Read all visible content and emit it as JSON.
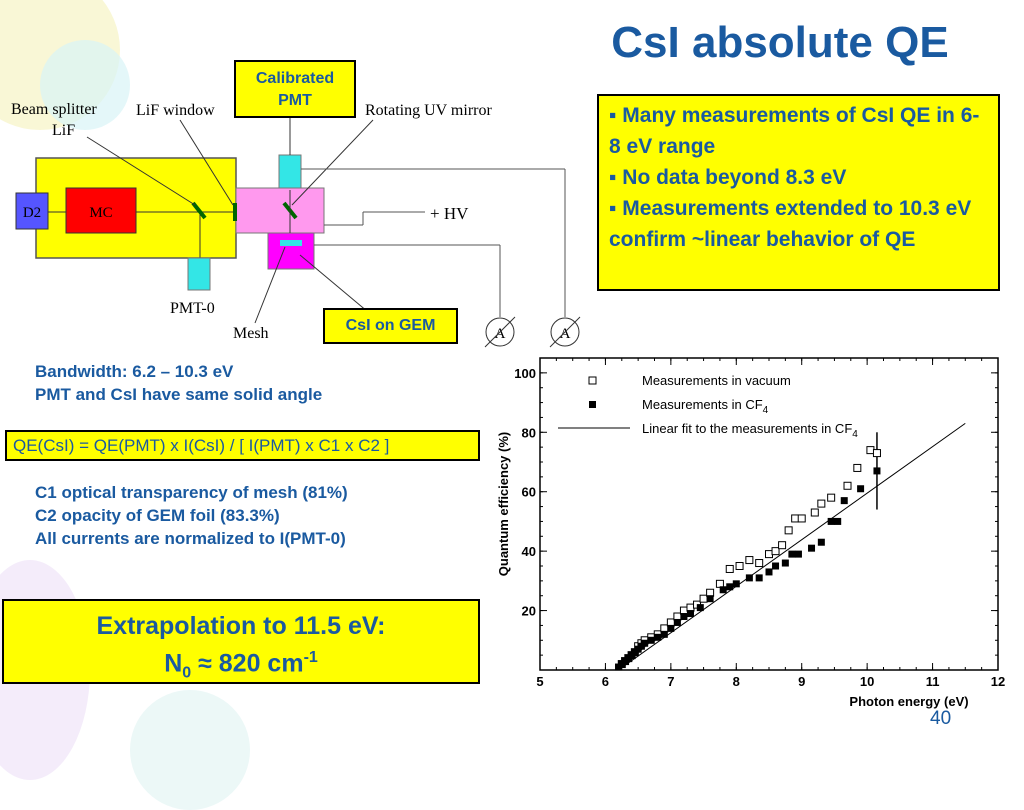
{
  "slide": {
    "title": "CsI absolute QE",
    "page_number": "40"
  },
  "bullets": [
    "▪ Many measurements of CsI QE in 6-8 eV range",
    "▪ No data beyond 8.3 eV",
    "▪ Measurements extended to 10.3 eV confirm  ~linear behavior of QE"
  ],
  "diagram": {
    "calibrated_pmt": "Calibrated PMT",
    "calibrated_pmt_l1": "Calibrated",
    "calibrated_pmt_l2": "PMT",
    "beam_splitter": "Beam splitter",
    "lif": "LiF",
    "lif_window": "LiF window",
    "rotating_uv_mirror": "Rotating UV mirror",
    "d2": "D2",
    "mc": "MC",
    "hv": "+ HV",
    "pmt0": "PMT-0",
    "mesh": "Mesh",
    "csi_on_gem": "CsI on GEM",
    "ammeter": "A",
    "colors": {
      "yellow": "#ffff00",
      "red": "#ff0000",
      "cyan": "#33e6e6",
      "pink": "#ff99ee",
      "magenta": "#ff00ff",
      "d2_blue": "#5555ff"
    }
  },
  "notes": {
    "bandwidth": "Bandwidth: 6.2 – 10.3 eV",
    "solid_angle": "PMT and CsI have same solid angle",
    "formula": "QE(CsI) = QE(PMT) x I(CsI) / [ I(PMT) x C1 x C2 ]",
    "c1": "C1 optical transparency of mesh (81%)",
    "c2": "C2 opacity of GEM foil (83.3%)",
    "norm": "All currents are normalized to I(PMT-0)"
  },
  "extrapolation": {
    "line1": "Extrapolation to 11.5 eV:",
    "n": "N",
    "n_sub": "0",
    "approx": " ≈ 820 cm",
    "sup": "-1"
  },
  "chart_data": {
    "type": "scatter",
    "xlabel": "Photon energy (eV)",
    "ylabel": "Quantum efficiency (%)",
    "xlim": [
      5,
      12
    ],
    "ylim": [
      0,
      105
    ],
    "xticks": [
      "5",
      "6",
      "7",
      "8",
      "9",
      "10",
      "11",
      "12"
    ],
    "yticks": [
      "20",
      "40",
      "60",
      "80",
      "100"
    ],
    "legend_position": "top-left",
    "legend": {
      "vacuum": "Measurements in vacuum",
      "cf4": "Measurements in CF",
      "fit": "Linear fit to the measurements in CF",
      "sub": "4"
    },
    "series": [
      {
        "name": "Measurements in vacuum",
        "marker": "open-square",
        "points": [
          [
            6.25,
            2
          ],
          [
            6.3,
            3
          ],
          [
            6.35,
            4
          ],
          [
            6.4,
            5
          ],
          [
            6.45,
            6
          ],
          [
            6.5,
            8
          ],
          [
            6.55,
            9
          ],
          [
            6.6,
            10
          ],
          [
            6.7,
            11
          ],
          [
            6.8,
            12
          ],
          [
            6.9,
            14
          ],
          [
            7.0,
            16
          ],
          [
            7.1,
            18
          ],
          [
            7.2,
            20
          ],
          [
            7.3,
            21
          ],
          [
            7.4,
            22
          ],
          [
            7.5,
            24
          ],
          [
            7.6,
            26
          ],
          [
            7.75,
            29
          ],
          [
            7.9,
            34
          ],
          [
            8.05,
            35
          ],
          [
            8.2,
            37
          ],
          [
            8.35,
            36
          ],
          [
            8.5,
            39
          ],
          [
            8.6,
            40
          ],
          [
            8.7,
            42
          ],
          [
            8.8,
            47
          ],
          [
            8.9,
            51
          ],
          [
            9.0,
            51
          ],
          [
            9.2,
            53
          ],
          [
            9.3,
            56
          ],
          [
            9.45,
            58
          ],
          [
            9.7,
            62
          ],
          [
            9.85,
            68
          ],
          [
            10.05,
            74
          ],
          [
            10.15,
            73
          ]
        ]
      },
      {
        "name": "Measurements in CF4",
        "marker": "filled-square",
        "points": [
          [
            6.2,
            1
          ],
          [
            6.25,
            2
          ],
          [
            6.3,
            3
          ],
          [
            6.35,
            4
          ],
          [
            6.4,
            5
          ],
          [
            6.45,
            6
          ],
          [
            6.5,
            7
          ],
          [
            6.55,
            8
          ],
          [
            6.6,
            9
          ],
          [
            6.7,
            10
          ],
          [
            6.8,
            11
          ],
          [
            6.9,
            12
          ],
          [
            7.0,
            14
          ],
          [
            7.1,
            16
          ],
          [
            7.2,
            18
          ],
          [
            7.3,
            19
          ],
          [
            7.45,
            21
          ],
          [
            7.6,
            24
          ],
          [
            7.8,
            27
          ],
          [
            7.9,
            28
          ],
          [
            8.0,
            29
          ],
          [
            8.2,
            31
          ],
          [
            8.35,
            31
          ],
          [
            8.5,
            33
          ],
          [
            8.6,
            35
          ],
          [
            8.75,
            36
          ],
          [
            8.85,
            39
          ],
          [
            8.95,
            39
          ],
          [
            9.15,
            41
          ],
          [
            9.3,
            43
          ],
          [
            9.45,
            50
          ],
          [
            9.55,
            50
          ],
          [
            9.65,
            57
          ],
          [
            9.9,
            61
          ],
          [
            10.15,
            67
          ]
        ]
      },
      {
        "name": "Linear fit to the measurements in CF4",
        "type": "line",
        "points": [
          [
            6.2,
            0
          ],
          [
            11.5,
            83
          ]
        ]
      }
    ],
    "error_bar": {
      "x": 10.15,
      "y_low": 54,
      "y_high": 80
    }
  }
}
